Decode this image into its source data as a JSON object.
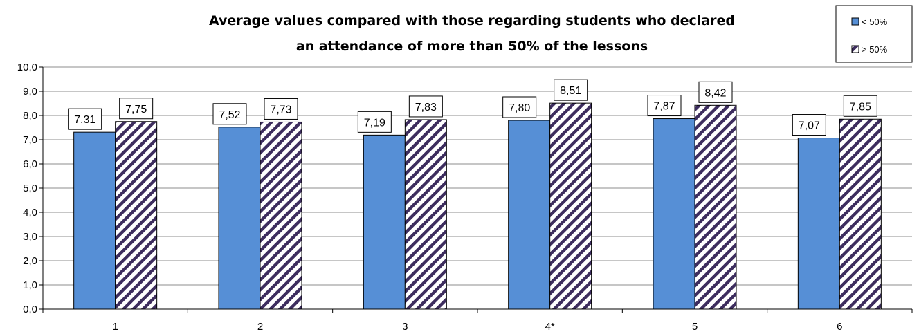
{
  "chart_data": {
    "type": "bar",
    "title_lines": [
      "Average values compared with those regarding students who declared",
      "an attendance of more than 50% of the lessons"
    ],
    "categories": [
      "1",
      "2",
      "3",
      "4*",
      "5",
      "6"
    ],
    "series": [
      {
        "name": "< 50%",
        "values": [
          7.31,
          7.52,
          7.19,
          7.8,
          7.87,
          7.07
        ],
        "labels": [
          "7,31",
          "7,52",
          "7,19",
          "7,80",
          "7,87",
          "7,07"
        ],
        "color": "#568fd6",
        "pattern": "solid"
      },
      {
        "name": "> 50%",
        "values": [
          7.75,
          7.73,
          7.83,
          8.51,
          8.42,
          7.85
        ],
        "labels": [
          "7,75",
          "7,73",
          "7,83",
          "8,51",
          "8,42",
          "7,85"
        ],
        "color": "#3d2d5e",
        "pattern": "diagonal-stripes"
      }
    ],
    "ylim": [
      0,
      10
    ],
    "yticks": [
      "0,0",
      "1,0",
      "2,0",
      "3,0",
      "4,0",
      "5,0",
      "6,0",
      "7,0",
      "8,0",
      "9,0",
      "10,0"
    ],
    "grid": true,
    "legend_position": "top-right",
    "xlabel": "",
    "ylabel": ""
  }
}
